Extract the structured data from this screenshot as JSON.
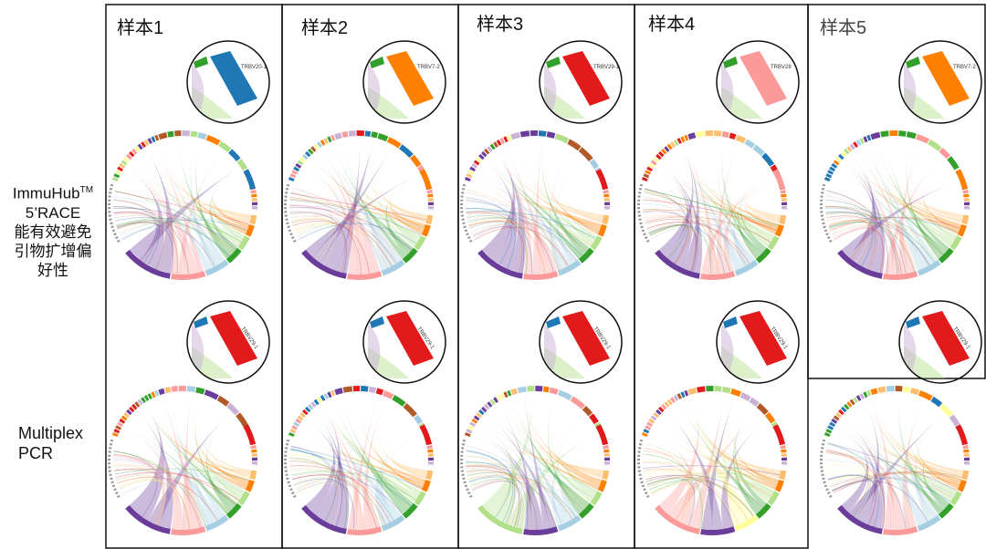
{
  "samples": [
    {
      "title": "样本1",
      "top": {
        "label": "TRBV20-1",
        "color": "#1f78b4"
      },
      "bottom": {
        "label": "TRBV29-1",
        "color": "#e31a1c"
      }
    },
    {
      "title": "样本2",
      "top": {
        "label": "TRBV7-2",
        "color": "#ff7f00"
      },
      "bottom": {
        "label": "TRBV29-1",
        "color": "#e31a1c"
      }
    },
    {
      "title": "样本3",
      "top": {
        "label": "TRBV29-1",
        "color": "#e31a1c"
      },
      "bottom": {
        "label": "TRBV29-1",
        "color": "#e31a1c"
      }
    },
    {
      "title": "样本4",
      "top": {
        "label": "TRBV28",
        "color": "#fb9a99"
      },
      "bottom": {
        "label": "TRBV29-1",
        "color": "#e31a1c"
      }
    },
    {
      "title": "样本5",
      "top": {
        "label": "TRBV7-2",
        "color": "#ff7f00"
      },
      "bottom": {
        "label": "TRBV29-1",
        "color": "#e31a1c"
      }
    }
  ],
  "rows": [
    {
      "lines": [
        "ImmuHub",
        "5’RACE",
        "能有效避免",
        "引物扩增偏",
        "好性"
      ],
      "sup": "TM"
    },
    {
      "lines": [
        "Multiplex",
        "PCR"
      ]
    }
  ],
  "palette": [
    "#1f78b4",
    "#a6cee3",
    "#33a02c",
    "#b2df8a",
    "#e31a1c",
    "#fb9a99",
    "#ff7f00",
    "#fdbf6f",
    "#6a3d9a",
    "#cab2d6",
    "#b15928",
    "#ffff99"
  ]
}
